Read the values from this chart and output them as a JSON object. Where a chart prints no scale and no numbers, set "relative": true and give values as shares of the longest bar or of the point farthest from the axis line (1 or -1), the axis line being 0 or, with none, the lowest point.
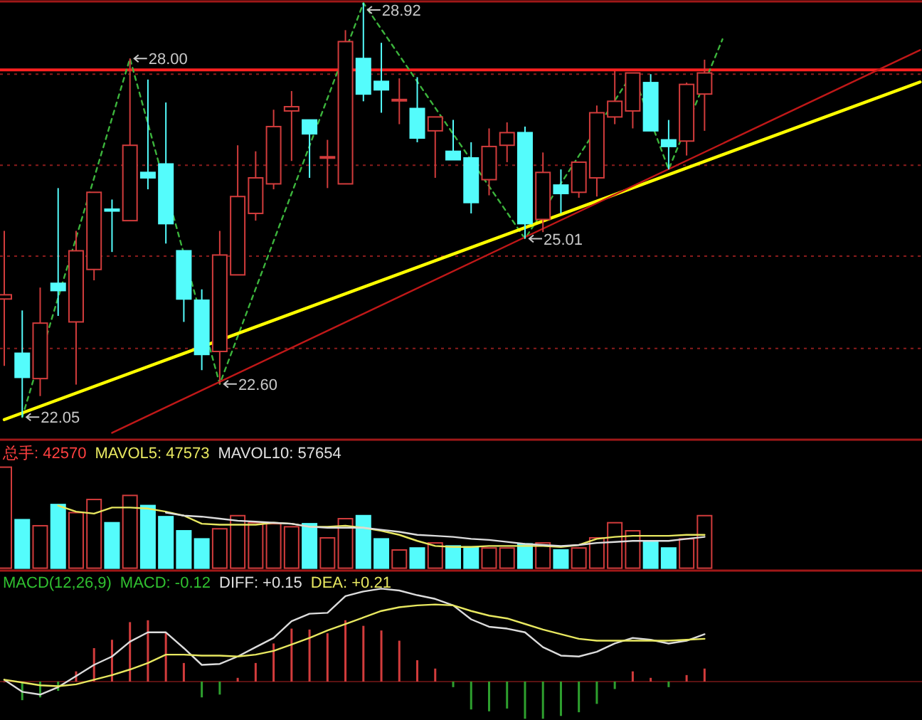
{
  "chart_data": [
    {
      "type": "candlestick",
      "categories": [
        null,
        null,
        null,
        null,
        null,
        null,
        null,
        null,
        null,
        null,
        null,
        null,
        null,
        null,
        null,
        null,
        null,
        null,
        null,
        null,
        null,
        null,
        null,
        null,
        null,
        null,
        null,
        null,
        null,
        null,
        null,
        null,
        null,
        null,
        null,
        null,
        null,
        null,
        null,
        null,
        null,
        null,
        null,
        null,
        null,
        null,
        null,
        null,
        null,
        null,
        null,
        null
      ],
      "ohlc": [
        [
          24.01,
          25.14,
          22.9,
          24.08
        ],
        [
          23.11,
          23.82,
          22.05,
          22.71
        ],
        [
          22.69,
          24.2,
          22.4,
          23.61
        ],
        [
          24.27,
          25.85,
          23.73,
          24.15
        ],
        [
          23.63,
          25.14,
          22.59,
          24.81
        ],
        [
          24.5,
          25.78,
          24.32,
          25.78
        ],
        [
          25.5,
          25.66,
          24.79,
          25.47
        ],
        [
          25.31,
          28.0,
          25.31,
          26.56
        ],
        [
          26.11,
          27.65,
          25.83,
          26.02
        ],
        [
          26.25,
          27.27,
          24.93,
          25.26
        ],
        [
          24.81,
          24.81,
          23.63,
          24.01
        ],
        [
          23.99,
          24.17,
          22.83,
          23.09
        ],
        [
          23.14,
          25.14,
          22.6,
          24.74
        ],
        [
          24.41,
          26.56,
          24.41,
          25.71
        ],
        [
          25.43,
          26.46,
          25.31,
          26.02
        ],
        [
          25.92,
          27.15,
          25.83,
          26.87
        ],
        [
          27.13,
          27.46,
          26.3,
          27.2
        ],
        [
          26.98,
          26.98,
          26.02,
          26.75
        ],
        [
          26.37,
          26.65,
          25.85,
          26.37
        ],
        [
          25.92,
          28.47,
          25.92,
          28.28
        ],
        [
          28.0,
          28.92,
          27.29,
          27.41
        ],
        [
          27.62,
          28.26,
          27.1,
          27.48
        ],
        [
          27.31,
          27.67,
          26.91,
          27.32
        ],
        [
          27.17,
          27.69,
          26.61,
          26.68
        ],
        [
          26.8,
          27.03,
          26.02,
          27.03
        ],
        [
          26.46,
          26.98,
          26.32,
          26.32
        ],
        [
          26.35,
          26.61,
          25.43,
          25.61
        ],
        [
          25.99,
          26.84,
          25.73,
          26.54
        ],
        [
          26.56,
          26.94,
          26.28,
          26.77
        ],
        [
          26.77,
          26.87,
          25.01,
          25.26
        ],
        [
          25.33,
          26.44,
          25.12,
          26.11
        ],
        [
          25.9,
          26.16,
          25.43,
          25.76
        ],
        [
          25.78,
          26.28,
          25.69,
          26.28
        ],
        [
          26.02,
          27.22,
          25.71,
          27.1
        ],
        [
          27.03,
          27.79,
          26.91,
          27.29
        ],
        [
          27.13,
          27.76,
          26.84,
          27.76
        ],
        [
          27.6,
          27.74,
          26.8,
          26.8
        ],
        [
          26.65,
          26.98,
          26.16,
          26.54
        ],
        [
          26.63,
          27.6,
          26.39,
          27.57
        ],
        [
          27.41,
          27.98,
          26.8,
          27.76
        ],
        null,
        null,
        null,
        null,
        null,
        null,
        null,
        null,
        null,
        null,
        null,
        null
      ],
      "colors": [
        "#d23c3c",
        "#54fcfc",
        "#d23c3c",
        "#54fcfc",
        "#d23c3c",
        "#d23c3c",
        "#54fcfc",
        "#d23c3c",
        "#54fcfc",
        "#54fcfc",
        "#54fcfc",
        "#54fcfc",
        "#d23c3c",
        "#d23c3c",
        "#d23c3c",
        "#d23c3c",
        "#d23c3c",
        "#54fcfc",
        "#d23c3c",
        "#d23c3c",
        "#54fcfc",
        "#54fcfc",
        "#d23c3c",
        "#54fcfc",
        "#d23c3c",
        "#54fcfc",
        "#54fcfc",
        "#d23c3c",
        "#d23c3c",
        "#54fcfc",
        "#d23c3c",
        "#54fcfc",
        "#d23c3c",
        "#d23c3c",
        "#d23c3c",
        "#d23c3c",
        "#54fcfc",
        "#54fcfc",
        "#d23c3c",
        "#d23c3c",
        null,
        null,
        null,
        null,
        null,
        null,
        null,
        null,
        null,
        null,
        null,
        null
      ],
      "series": [
        {
          "type": "line",
          "color": "#3cb43c",
          "line_style": "dashed",
          "values": [
            null,
            22.05,
            null,
            null,
            null,
            null,
            null,
            28.0,
            null,
            null,
            null,
            null,
            22.6,
            null,
            null,
            null,
            null,
            null,
            null,
            null,
            28.92,
            null,
            null,
            null,
            null,
            null,
            null,
            null,
            null,
            25.01,
            null,
            null,
            null,
            null,
            null,
            27.76,
            null,
            26.16,
            null,
            null,
            28.32,
            null,
            null,
            null,
            null,
            null,
            null,
            null,
            null,
            null,
            null,
            null
          ]
        },
        {
          "type": "line",
          "color": "#ffff00",
          "values": [
            22.01,
            null,
            null,
            null,
            null,
            null,
            null,
            null,
            null,
            null,
            null,
            null,
            null,
            null,
            null,
            null,
            null,
            null,
            null,
            null,
            null,
            null,
            null,
            null,
            null,
            null,
            null,
            null,
            null,
            null,
            null,
            null,
            null,
            null,
            null,
            null,
            null,
            null,
            null,
            null,
            null,
            null,
            null,
            null,
            null,
            null,
            null,
            null,
            null,
            null,
            null,
            27.61
          ]
        },
        {
          "type": "line",
          "color": "#c01818",
          "values": [
            null,
            null,
            null,
            null,
            null,
            null,
            21.79,
            null,
            null,
            null,
            null,
            null,
            null,
            null,
            null,
            null,
            null,
            null,
            null,
            null,
            null,
            null,
            null,
            null,
            null,
            null,
            null,
            null,
            null,
            null,
            null,
            null,
            null,
            null,
            null,
            null,
            null,
            null,
            null,
            null,
            null,
            null,
            null,
            null,
            null,
            null,
            null,
            null,
            null,
            null,
            null,
            28.14
          ]
        }
      ],
      "ref_lines": [
        {
          "axis": "y",
          "value": 27.81,
          "color": "#ff2020"
        }
      ],
      "ylim": [
        21.7,
        28.97
      ],
      "yticks": [
        {
          "value": 23.19,
          "label": null
        },
        {
          "value": 24.72,
          "label": null
        },
        {
          "value": 26.23,
          "label": null
        },
        {
          "value": 27.74,
          "label": null
        }
      ],
      "grid": "y",
      "annotations": [
        "22.05",
        "28.00",
        "22.60",
        "28.92",
        "25.01"
      ]
    },
    {
      "type": "bar",
      "relative": true,
      "categories": [
        null,
        null,
        null,
        null,
        null,
        null,
        null,
        null,
        null,
        null,
        null,
        null,
        null,
        null,
        null,
        null,
        null,
        null,
        null,
        null,
        null,
        null,
        null,
        null,
        null,
        null,
        null,
        null,
        null,
        null,
        null,
        null,
        null,
        null,
        null,
        null,
        null,
        null,
        null,
        null,
        null,
        null,
        null,
        null,
        null,
        null,
        null,
        null,
        null,
        null,
        null,
        null
      ],
      "series": [
        {
          "type": "bar",
          "colors": [
            "#d23c3c",
            "#54fcfc",
            "#d23c3c",
            "#54fcfc",
            "#d23c3c",
            "#d23c3c",
            "#54fcfc",
            "#d23c3c",
            "#54fcfc",
            "#54fcfc",
            "#54fcfc",
            "#54fcfc",
            "#d23c3c",
            "#d23c3c",
            "#d23c3c",
            "#d23c3c",
            "#d23c3c",
            "#54fcfc",
            "#d23c3c",
            "#d23c3c",
            "#54fcfc",
            "#54fcfc",
            "#d23c3c",
            "#54fcfc",
            "#d23c3c",
            "#54fcfc",
            "#54fcfc",
            "#d23c3c",
            "#d23c3c",
            "#54fcfc",
            "#d23c3c",
            "#54fcfc",
            "#d23c3c",
            "#d23c3c",
            "#d23c3c",
            "#d23c3c",
            "#54fcfc",
            "#54fcfc",
            "#d23c3c",
            "#d23c3c",
            null,
            null,
            null,
            null,
            null,
            null,
            null,
            null,
            null,
            null,
            null,
            null
          ],
          "values": [
            1.0,
            0.48,
            0.42,
            0.63,
            0.55,
            0.68,
            0.45,
            0.72,
            0.62,
            0.51,
            0.37,
            0.29,
            0.39,
            0.52,
            0.45,
            0.44,
            0.41,
            0.44,
            0.3,
            0.49,
            0.52,
            0.29,
            0.18,
            0.2,
            0.25,
            0.22,
            0.21,
            0.2,
            0.2,
            0.24,
            0.25,
            0.18,
            0.2,
            0.3,
            0.45,
            0.37,
            0.26,
            0.2,
            0.29,
            0.52,
            null,
            null,
            null,
            null,
            null,
            null,
            null,
            null,
            null,
            null,
            null,
            null
          ]
        },
        {
          "type": "line",
          "color": "#e8e860",
          "values": [
            null,
            null,
            null,
            0.62,
            0.56,
            0.54,
            0.6,
            0.6,
            0.59,
            0.56,
            0.52,
            0.44,
            0.43,
            0.43,
            0.43,
            0.45,
            0.44,
            0.41,
            0.41,
            0.42,
            0.4,
            0.37,
            0.33,
            0.27,
            0.22,
            0.21,
            0.21,
            0.22,
            0.22,
            0.22,
            0.22,
            0.21,
            0.23,
            0.29,
            0.31,
            0.32,
            0.32,
            0.32,
            0.33,
            0.33,
            null,
            null,
            null,
            null,
            null,
            null,
            null,
            null,
            null,
            null,
            null,
            null
          ]
        },
        {
          "type": "line",
          "color": "#dcdcdc",
          "values": [
            null,
            null,
            null,
            null,
            null,
            null,
            null,
            null,
            null,
            0.55,
            0.52,
            0.51,
            0.49,
            0.47,
            0.46,
            0.45,
            0.44,
            0.41,
            0.4,
            0.4,
            0.4,
            0.38,
            0.36,
            0.33,
            0.32,
            0.31,
            0.29,
            0.28,
            0.26,
            0.24,
            0.23,
            0.22,
            0.23,
            0.25,
            0.26,
            0.27,
            0.27,
            0.27,
            0.29,
            0.31,
            null,
            null,
            null,
            null,
            null,
            null,
            null,
            null,
            null,
            null,
            null,
            null
          ]
        }
      ],
      "annotations": [
        "总手: 42570",
        "MAVOL5: 47573",
        "MAVOL10: 57654"
      ]
    },
    {
      "type": "bar",
      "relative": true,
      "categories": [
        null,
        null,
        null,
        null,
        null,
        null,
        null,
        null,
        null,
        null,
        null,
        null,
        null,
        null,
        null,
        null,
        null,
        null,
        null,
        null,
        null,
        null,
        null,
        null,
        null,
        null,
        null,
        null,
        null,
        null,
        null,
        null,
        null,
        null,
        null,
        null,
        null,
        null,
        null,
        null,
        null,
        null,
        null,
        null,
        null,
        null,
        null,
        null,
        null,
        null,
        null,
        null
      ],
      "series": [
        {
          "type": "bar",
          "colors": [
            "#d23c3c",
            "#2ea02e",
            "#2ea02e",
            "#2ea02e",
            "#d23c3c",
            "#d23c3c",
            "#d23c3c",
            "#d23c3c",
            "#d23c3c",
            "#d23c3c",
            "#d23c3c",
            "#2ea02e",
            "#2ea02e",
            "#d23c3c",
            "#d23c3c",
            "#d23c3c",
            "#d23c3c",
            "#d23c3c",
            "#d23c3c",
            "#d23c3c",
            "#d23c3c",
            "#d23c3c",
            "#d23c3c",
            "#d23c3c",
            "#d23c3c",
            "#2ea02e",
            "#2ea02e",
            "#2ea02e",
            "#2ea02e",
            "#2ea02e",
            "#2ea02e",
            "#2ea02e",
            "#2ea02e",
            "#2ea02e",
            "#2ea02e",
            "#d23c3c",
            "#d23c3c",
            "#2ea02e",
            "#d23c3c",
            "#d23c3c",
            null,
            null,
            null,
            null,
            null,
            null,
            null,
            null,
            null,
            null,
            null,
            null
          ],
          "values": [
            0,
            -0.2,
            -0.17,
            -0.1,
            0.11,
            0.36,
            0.45,
            0.64,
            0.66,
            0.52,
            0.2,
            -0.17,
            -0.14,
            0.04,
            0.2,
            0.41,
            0.57,
            0.56,
            0.52,
            0.66,
            0.6,
            0.55,
            0.44,
            0.23,
            0.14,
            -0.06,
            -0.3,
            -0.32,
            -0.29,
            -0.4,
            -0.4,
            -0.37,
            -0.33,
            -0.24,
            -0.08,
            0.11,
            0.04,
            -0.06,
            0.07,
            0.14,
            null,
            null,
            null,
            null,
            null,
            null,
            null,
            null,
            null,
            null,
            null,
            null
          ]
        },
        {
          "type": "line",
          "color": "#dcdcdc",
          "values": [
            0.02,
            -0.11,
            -0.14,
            -0.06,
            0.06,
            0.18,
            0.27,
            0.43,
            0.53,
            0.53,
            0.36,
            0.18,
            0.19,
            0.27,
            0.37,
            0.47,
            0.65,
            0.73,
            0.74,
            0.92,
            0.97,
            1.0,
            0.98,
            0.93,
            0.89,
            0.82,
            0.67,
            0.59,
            0.57,
            0.53,
            0.37,
            0.28,
            0.27,
            0.32,
            0.41,
            0.47,
            0.45,
            0.41,
            0.44,
            0.51,
            null,
            null,
            null,
            null,
            null,
            null,
            null,
            null,
            null,
            null,
            null,
            null
          ]
        },
        {
          "type": "line",
          "color": "#e8e860",
          "values": [
            0.02,
            -0.01,
            -0.04,
            -0.05,
            -0.03,
            0.02,
            0.07,
            0.13,
            0.2,
            0.29,
            0.29,
            0.28,
            0.28,
            0.27,
            0.29,
            0.33,
            0.4,
            0.47,
            0.55,
            0.62,
            0.69,
            0.76,
            0.8,
            0.82,
            0.83,
            0.82,
            0.76,
            0.71,
            0.68,
            0.62,
            0.56,
            0.51,
            0.46,
            0.44,
            0.44,
            0.44,
            0.44,
            0.44,
            0.45,
            0.46,
            null,
            null,
            null,
            null,
            null,
            null,
            null,
            null,
            null,
            null,
            null,
            null
          ]
        }
      ],
      "ref_lines": [
        {
          "axis": "y",
          "value": 0,
          "color": "#5a1212"
        }
      ],
      "annotations": [
        "MACD(12,26,9)",
        "MACD: -0.12",
        "DIFF: +0.15",
        "DEA: +0.21"
      ]
    }
  ]
}
